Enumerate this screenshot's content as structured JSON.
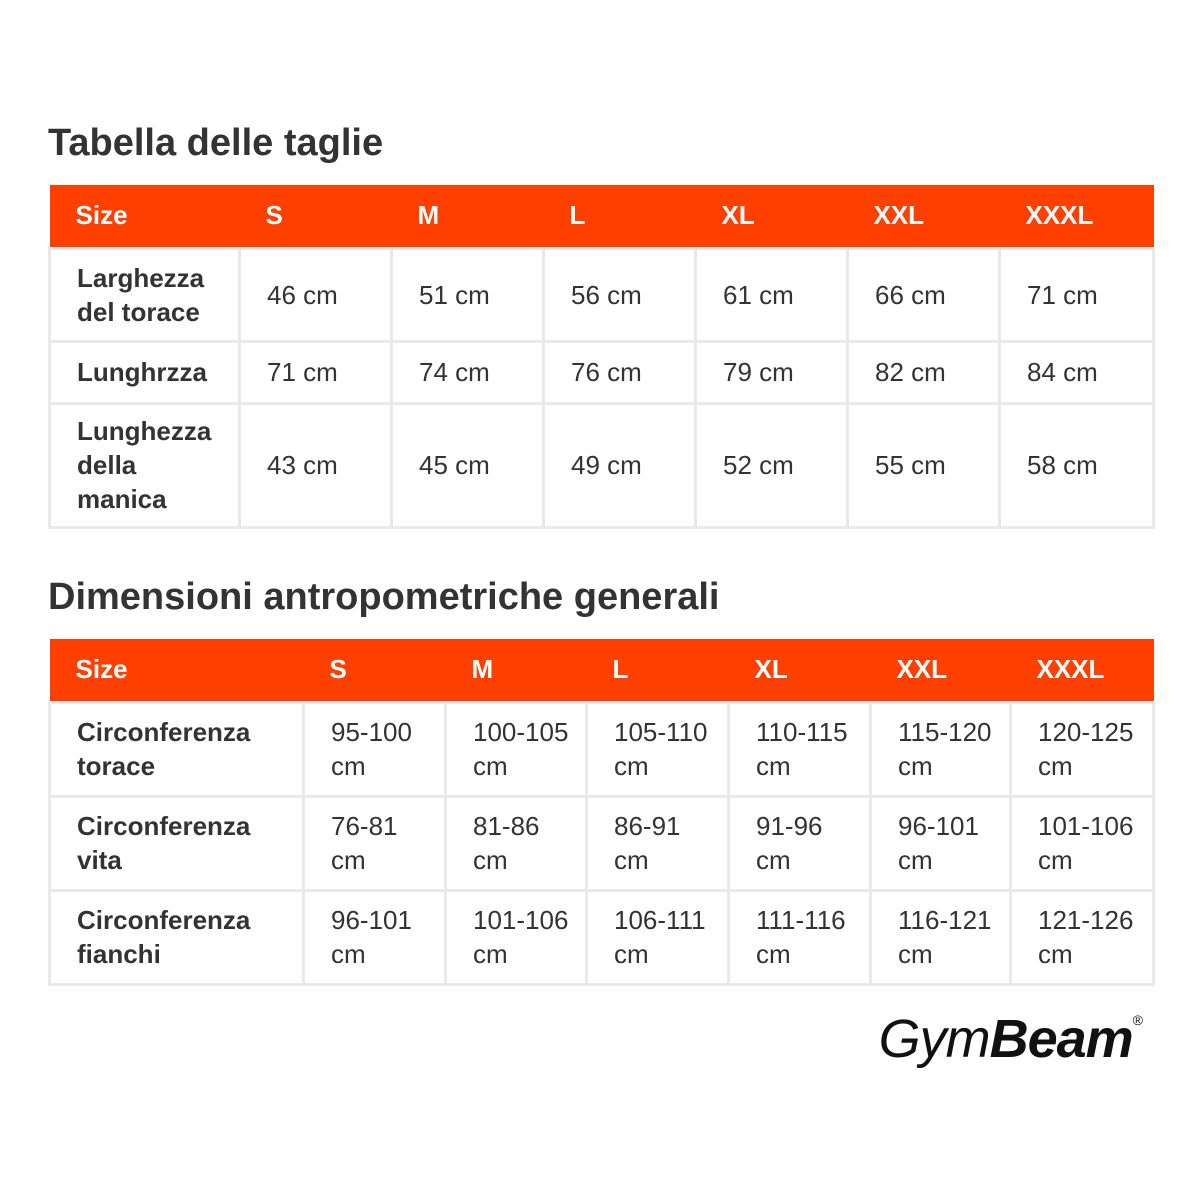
{
  "tables": [
    {
      "title": "Tabella delle taglie",
      "header": [
        "Size",
        "S",
        "M",
        "L",
        "XL",
        "XXL",
        "XXXL"
      ],
      "rows": [
        [
          "Larghezza del torace",
          "46 cm",
          "51 cm",
          "56 cm",
          "61 cm",
          "66 cm",
          "71 cm"
        ],
        [
          "Lunghrzza",
          "71 cm",
          "74 cm",
          "76 cm",
          "79 cm",
          "82 cm",
          "84 cm"
        ],
        [
          "Lunghezza della manica",
          "43 cm",
          "45 cm",
          "49 cm",
          "52 cm",
          "55 cm",
          "58 cm"
        ]
      ]
    },
    {
      "title": "Dimensioni antropometriche generali",
      "header": [
        "Size",
        "S",
        "M",
        "L",
        "XL",
        "XXL",
        "XXXL"
      ],
      "rows": [
        [
          "Circonferenza torace",
          "95-100 cm",
          "100-105 cm",
          "105-110 cm",
          "110-115 cm",
          "115-120 cm",
          "120-125 cm"
        ],
        [
          "Circonferenza vita",
          "76-81 cm",
          "81-86 cm",
          "86-91 cm",
          "91-96 cm",
          "96-101 cm",
          "101-106 cm"
        ],
        [
          "Circonferenza fianchi",
          "96-101 cm",
          "101-106 cm",
          "106-111 cm",
          "111-116 cm",
          "116-121 cm",
          "121-126 cm"
        ]
      ]
    }
  ],
  "logo": {
    "first": "Gym",
    "second": "Beam",
    "mark": "®"
  }
}
